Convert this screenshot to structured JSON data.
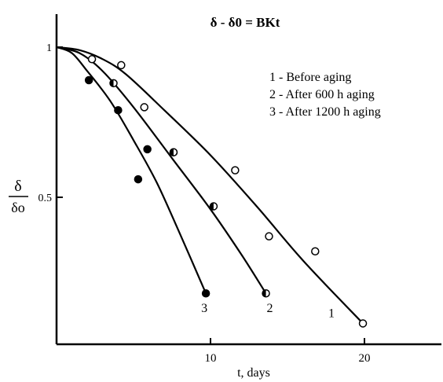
{
  "chart_data": {
    "type": "scatter",
    "equation": "δ - δ0 = BKt",
    "xlabel": "t, days",
    "ylabel": {
      "numerator": "δ",
      "denominator": "δo"
    },
    "xlim": [
      0,
      25
    ],
    "ylim": [
      0,
      1.05
    ],
    "x_ticks": [
      {
        "value": 10,
        "label": "10"
      },
      {
        "value": 20,
        "label": "20"
      }
    ],
    "y_ticks": [
      {
        "value": 0.5,
        "label": "0.5"
      },
      {
        "value": 1.0,
        "label": "1"
      }
    ],
    "grid": false,
    "legend": {
      "position": "top-right",
      "entries": [
        {
          "text": "1 - Before aging"
        },
        {
          "text": "2 - After 600 h aging"
        },
        {
          "text": "3 - After 1200 h aging"
        }
      ]
    },
    "series": [
      {
        "label": "1",
        "marker": "open",
        "points": [
          {
            "x": 2.3,
            "y": 0.96
          },
          {
            "x": 4.2,
            "y": 0.94
          },
          {
            "x": 5.7,
            "y": 0.8
          },
          {
            "x": 7.6,
            "y": 0.65
          },
          {
            "x": 11.6,
            "y": 0.59
          },
          {
            "x": 13.8,
            "y": 0.37
          },
          {
            "x": 16.8,
            "y": 0.32
          },
          {
            "x": 19.9,
            "y": 0.08
          }
        ],
        "curve": [
          {
            "x": 0,
            "y": 1.0
          },
          {
            "x": 1.5,
            "y": 0.99
          },
          {
            "x": 3.0,
            "y": 0.96
          },
          {
            "x": 4.5,
            "y": 0.91
          },
          {
            "x": 7.0,
            "y": 0.79
          },
          {
            "x": 10.0,
            "y": 0.64
          },
          {
            "x": 13.0,
            "y": 0.47
          },
          {
            "x": 16.0,
            "y": 0.29
          },
          {
            "x": 19.9,
            "y": 0.08
          }
        ]
      },
      {
        "label": "2",
        "marker": "half",
        "points": [
          {
            "x": 3.7,
            "y": 0.88
          },
          {
            "x": 7.6,
            "y": 0.65
          },
          {
            "x": 10.2,
            "y": 0.47
          },
          {
            "x": 13.6,
            "y": 0.18
          }
        ],
        "curve": [
          {
            "x": 0,
            "y": 1.0
          },
          {
            "x": 1.5,
            "y": 0.98
          },
          {
            "x": 3.0,
            "y": 0.92
          },
          {
            "x": 5.0,
            "y": 0.8
          },
          {
            "x": 7.5,
            "y": 0.63
          },
          {
            "x": 10.0,
            "y": 0.46
          },
          {
            "x": 12.0,
            "y": 0.31
          },
          {
            "x": 13.6,
            "y": 0.18
          }
        ]
      },
      {
        "label": "3",
        "marker": "filled",
        "points": [
          {
            "x": 2.1,
            "y": 0.89
          },
          {
            "x": 4.0,
            "y": 0.79
          },
          {
            "x": 5.9,
            "y": 0.66
          },
          {
            "x": 5.3,
            "y": 0.56
          },
          {
            "x": 9.7,
            "y": 0.18
          }
        ],
        "curve": [
          {
            "x": 0,
            "y": 1.0
          },
          {
            "x": 1.0,
            "y": 0.98
          },
          {
            "x": 2.0,
            "y": 0.92
          },
          {
            "x": 3.5,
            "y": 0.82
          },
          {
            "x": 5.0,
            "y": 0.69
          },
          {
            "x": 6.5,
            "y": 0.55
          },
          {
            "x": 8.0,
            "y": 0.38
          },
          {
            "x": 9.7,
            "y": 0.18
          }
        ]
      }
    ]
  }
}
